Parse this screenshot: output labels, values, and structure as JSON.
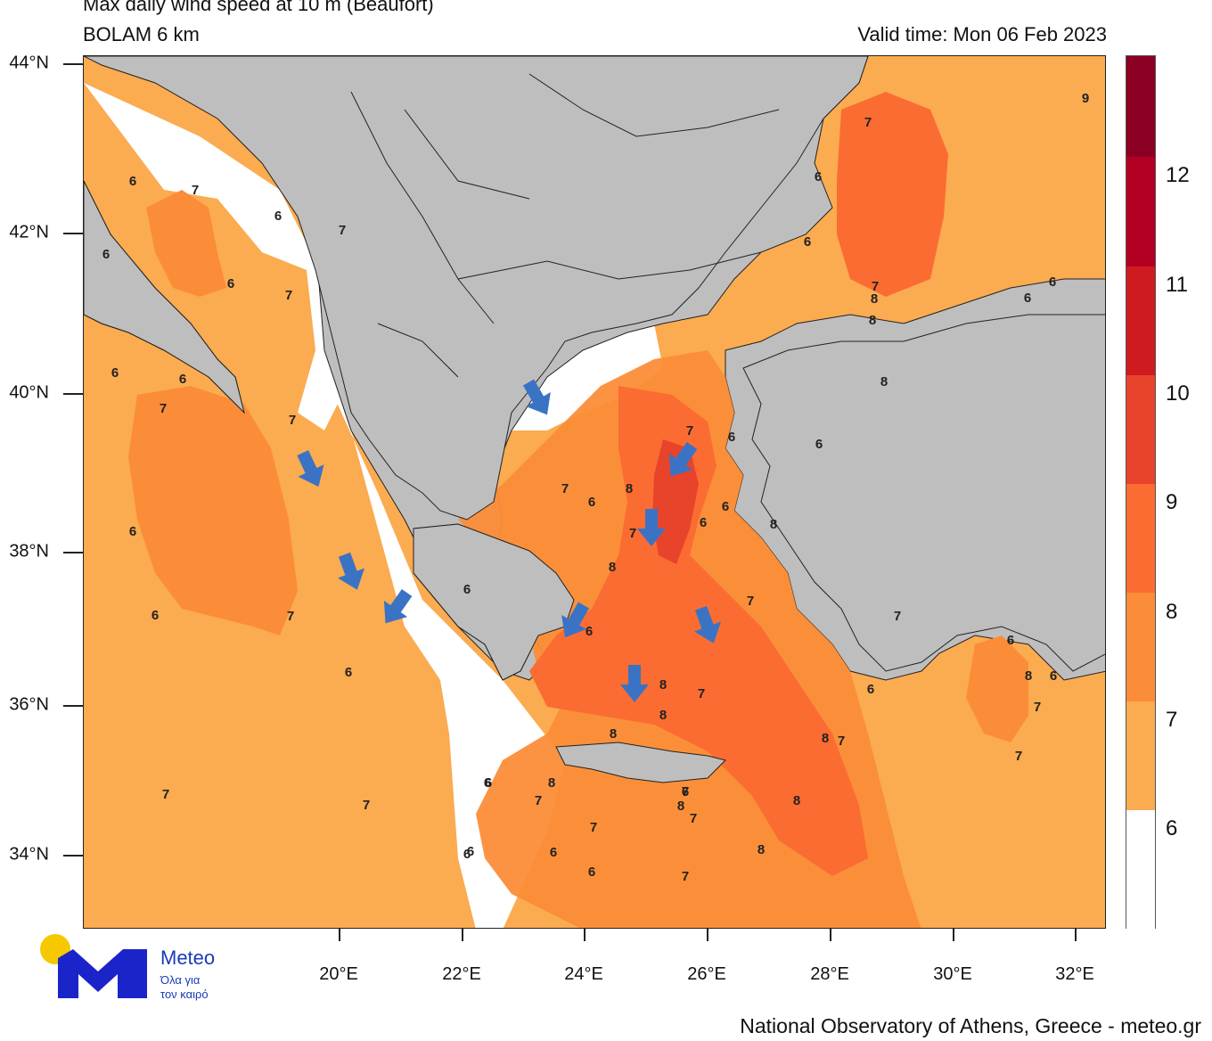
{
  "title_line1": "Max daily wind speed at 10 m (Beaufort)",
  "title_line2": "BOLAM 6 km",
  "valid_time": "Valid time: Mon 06 Feb 2023",
  "lat_labels": [
    "44°N",
    "42°N",
    "40°N",
    "38°N",
    "36°N",
    "34°N"
  ],
  "lon_labels": [
    "20°E",
    "22°E",
    "24°E",
    "26°E",
    "28°E",
    "30°E",
    "32°E"
  ],
  "legend": {
    "labels": [
      "12",
      "11",
      "10",
      "9",
      "8",
      "7",
      "6"
    ],
    "colors": [
      "#8b0022",
      "#b30022",
      "#cf1a20",
      "#e8432b",
      "#fb6c32",
      "#fb8d38",
      "#fbab50",
      "#ffffff"
    ]
  },
  "colors": {
    "land": "#bebebe",
    "sea_below_6": "#ffffff",
    "arrow": "#3b73c4"
  },
  "arrows": {
    "count": 9,
    "icon": "wind-direction-arrow-icon"
  },
  "contour_labels": [
    "6",
    "7",
    "6",
    "7",
    "6",
    "6",
    "6",
    "7",
    "7",
    "6",
    "7",
    "6",
    "6",
    "7",
    "6",
    "7",
    "7",
    "6",
    "6",
    "7",
    "6",
    "7",
    "6",
    "8",
    "7",
    "6",
    "6",
    "8",
    "6",
    "8",
    "7",
    "6",
    "8",
    "7",
    "9",
    "6",
    "6",
    "7",
    "8",
    "8",
    "6",
    "6",
    "8",
    "6",
    "7",
    "6",
    "6",
    "8",
    "6",
    "7",
    "7",
    "7",
    "8",
    "8",
    "8",
    "6",
    "8",
    "7",
    "6",
    "7",
    "6",
    "7",
    "8",
    "8",
    "8",
    "7",
    "7",
    "6",
    "6",
    "7"
  ],
  "logo": {
    "name": "Meteo",
    "tagline_line1": "Όλα για",
    "tagline_line2": "τον καιρό"
  },
  "credit": "National Observatory of Athens, Greece - meteo.gr"
}
